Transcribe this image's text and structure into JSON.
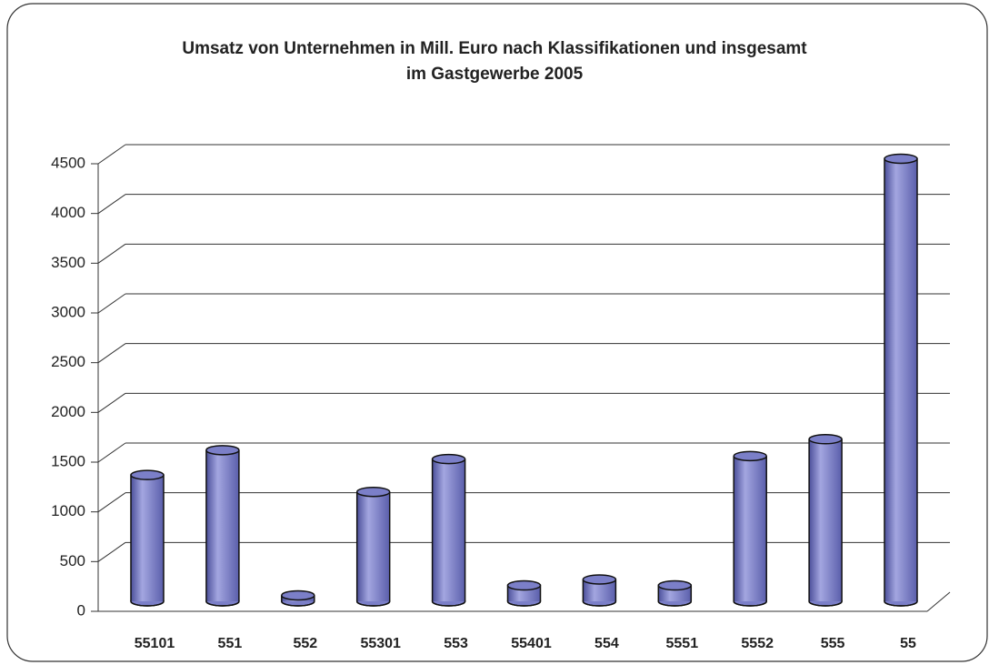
{
  "chart_data": {
    "type": "bar",
    "title": "Umsatz von Unternehmen in Mill. Euro nach Klassifikationen und insgesamt im Gastgewerbe 2005",
    "categories": [
      "55101",
      "551",
      "552",
      "55301",
      "553",
      "55401",
      "554",
      "5551",
      "5552",
      "555",
      "55"
    ],
    "values": [
      1270,
      1520,
      60,
      1100,
      1430,
      160,
      220,
      160,
      1460,
      1630,
      4450
    ],
    "color": "#7b7fc8",
    "ylim": [
      0,
      4500
    ],
    "yticks": [
      0,
      500,
      1000,
      1500,
      2000,
      2500,
      3000,
      3500,
      4000,
      4500
    ],
    "grid": true
  }
}
